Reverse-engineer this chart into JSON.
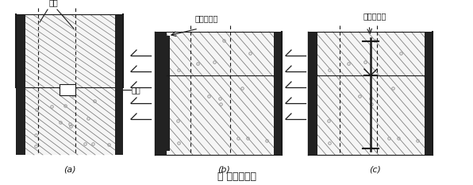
{
  "title": "图 施工缝构造",
  "label_a": "(a)",
  "label_b": "(b)",
  "label_c": "(c)",
  "text_gangjin": "钢筋",
  "text_liucao": "留槽",
  "text_wai": "外贴止水带",
  "text_zhong": "中埋止水带",
  "bg_color": "#ffffff",
  "lc": "#1a1a1a",
  "concrete_bg": "#f5f5f5",
  "wall_color": "#222222",
  "hatch_color": "#777777",
  "dot_color": "#999999"
}
